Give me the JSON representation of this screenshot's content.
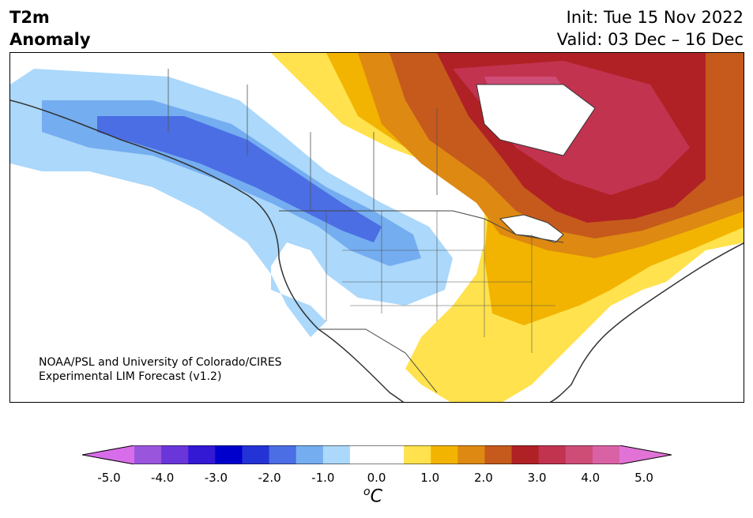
{
  "title": {
    "variable": "T2m",
    "kind": "Anomaly",
    "init": "Init: Tue 15 Nov 2022",
    "valid": "Valid: 03 Dec – 16 Dec"
  },
  "credit": {
    "line1": "NOAA/PSL and University of Colorado/CIRES",
    "line2": "Experimental LIM Forecast (v1.2)"
  },
  "colorbar": {
    "unit_super": "o",
    "unit_base": "C",
    "colors": [
      "#d86de9",
      "#9a55dd",
      "#6a36da",
      "#3318d4",
      "#0000cc",
      "#2433d6",
      "#4b6ee4",
      "#74adf0",
      "#abd8fb",
      "#ffffff",
      "#ffffff",
      "#ffe24d",
      "#f2b400",
      "#de8912",
      "#c55a1c",
      "#b02125",
      "#c23350",
      "#ce4d77",
      "#d962a4",
      "#e273d6"
    ],
    "ticks": [
      "-5.0",
      "-4.0",
      "-3.0",
      "-2.0",
      "-1.0",
      "0.0",
      "1.0",
      "2.0",
      "3.0",
      "4.0",
      "5.0"
    ]
  }
}
